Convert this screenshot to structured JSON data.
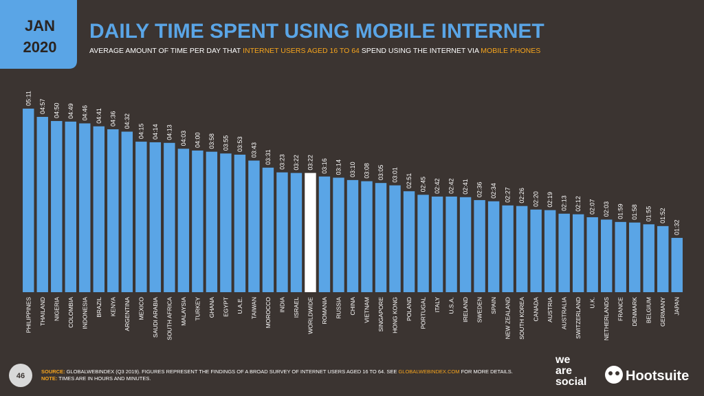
{
  "header": {
    "month": "JAN",
    "year": "2020",
    "title": "DAILY TIME SPENT USING MOBILE INTERNET",
    "subtitle": [
      {
        "text": "AVERAGE AMOUNT OF TIME PER DAY THAT ",
        "color": "#ffffff"
      },
      {
        "text": "INTERNET USERS AGED 16 TO 64",
        "color": "#f7a51d"
      },
      {
        "text": " SPEND USING THE INTERNET VIA ",
        "color": "#ffffff"
      },
      {
        "text": "MOBILE PHONES",
        "color": "#f7a51d"
      }
    ]
  },
  "chart_data": {
    "type": "bar",
    "categories": [
      "PHILIPPINES",
      "THAILAND",
      "NIGERIA",
      "COLOMBIA",
      "INDONESIA",
      "BRAZIL",
      "KENYA",
      "ARGENTINA",
      "MEXICO",
      "SAUDI ARABIA",
      "SOUTH AFRICA",
      "MALAYSIA",
      "TURKEY",
      "GHANA",
      "EGYPT",
      "U.A.E.",
      "TAIWAN",
      "MOROCCO",
      "INDIA",
      "ISRAEL",
      "WORLDWIDE",
      "ROMANIA",
      "RUSSIA",
      "CHINA",
      "VIETNAM",
      "SINGAPORE",
      "HONG KONG",
      "POLAND",
      "PORTUGAL",
      "ITALY",
      "U.S.A.",
      "IRELAND",
      "SWEDEN",
      "SPAIN",
      "NEW ZEALAND",
      "SOUTH KOREA",
      "CANADA",
      "AUSTRIA",
      "AUSTRALIA",
      "SWITZERLAND",
      "U.K.",
      "NETHERLANDS",
      "FRANCE",
      "DENMARK",
      "BELGIUM",
      "GERMANY",
      "JAPAN"
    ],
    "values": [
      311,
      297,
      290,
      289,
      286,
      281,
      276,
      272,
      255,
      254,
      253,
      243,
      240,
      238,
      235,
      233,
      223,
      211,
      203,
      202,
      202,
      196,
      194,
      190,
      188,
      185,
      181,
      171,
      165,
      162,
      162,
      161,
      156,
      154,
      147,
      146,
      140,
      139,
      133,
      132,
      127,
      123,
      119,
      118,
      115,
      112,
      92
    ],
    "value_labels": [
      "05:11",
      "04:57",
      "04:50",
      "04:49",
      "04:46",
      "04:41",
      "04:36",
      "04:32",
      "04:15",
      "04:14",
      "04:13",
      "04:03",
      "04:00",
      "03:58",
      "03:55",
      "03:53",
      "03:43",
      "03:31",
      "03:23",
      "03:22",
      "03:22",
      "03:16",
      "03:14",
      "03:10",
      "03:08",
      "03:05",
      "03:01",
      "02:51",
      "02:45",
      "02:42",
      "02:42",
      "02:41",
      "02:36",
      "02:34",
      "02:27",
      "02:26",
      "02:20",
      "02:19",
      "02:13",
      "02:12",
      "02:07",
      "02:03",
      "01:59",
      "01:58",
      "01:55",
      "01:52",
      "01:32"
    ],
    "colors": [
      "#5aa5e6",
      "#5aa5e6",
      "#5aa5e6",
      "#5aa5e6",
      "#5aa5e6",
      "#5aa5e6",
      "#5aa5e6",
      "#5aa5e6",
      "#5aa5e6",
      "#5aa5e6",
      "#5aa5e6",
      "#5aa5e6",
      "#5aa5e6",
      "#5aa5e6",
      "#5aa5e6",
      "#5aa5e6",
      "#5aa5e6",
      "#5aa5e6",
      "#5aa5e6",
      "#5aa5e6",
      "#ffffff",
      "#5aa5e6",
      "#5aa5e6",
      "#5aa5e6",
      "#5aa5e6",
      "#5aa5e6",
      "#5aa5e6",
      "#5aa5e6",
      "#5aa5e6",
      "#5aa5e6",
      "#5aa5e6",
      "#5aa5e6",
      "#5aa5e6",
      "#5aa5e6",
      "#5aa5e6",
      "#5aa5e6",
      "#5aa5e6",
      "#5aa5e6",
      "#5aa5e6",
      "#5aa5e6",
      "#5aa5e6",
      "#5aa5e6",
      "#5aa5e6",
      "#5aa5e6",
      "#5aa5e6",
      "#5aa5e6",
      "#5aa5e6"
    ]
  },
  "footer": {
    "page": "46",
    "line1": [
      {
        "text": "SOURCE:",
        "color": "#f7a51d"
      },
      {
        "text": " GLOBALWEBINDEX (Q3 2019). FIGURES REPRESENT THE FINDINGS OF A BROAD SURVEY OF INTERNET USERS AGED 16 TO 64. SEE ",
        "color": "#ffffff"
      },
      {
        "text": "GLOBALWEBINDEX.COM",
        "color": "#f7a51d"
      },
      {
        "text": " FOR MORE DETAILS.",
        "color": "#ffffff"
      }
    ],
    "line2": [
      {
        "text": "NOTE:",
        "color": "#f7a51d"
      },
      {
        "text": " TIMES ARE IN HOURS AND MINUTES.",
        "color": "#ffffff"
      }
    ]
  },
  "logos": {
    "wearesocial": [
      "we",
      "are",
      "social"
    ],
    "hootsuite": "Hootsuite"
  }
}
